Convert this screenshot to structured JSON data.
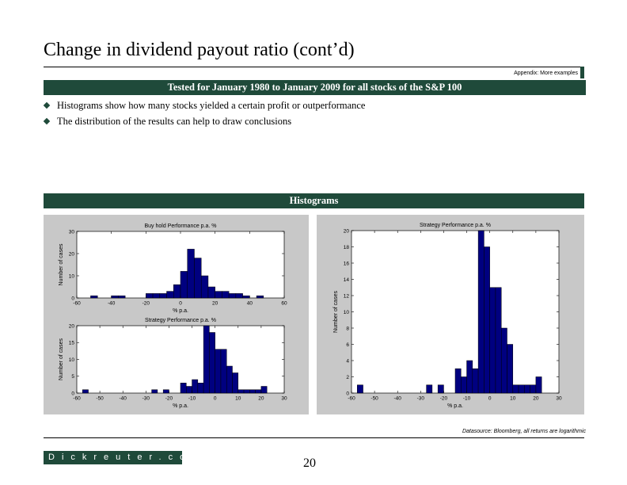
{
  "slide": {
    "title": "Change in dividend payout ratio (cont’d)",
    "appendix": "Appendix: More examples",
    "banner_main": "Tested for January 1980 to January 2009 for all stocks of the S&P  100",
    "bullets": [
      "Histograms show how many stocks yielded a certain profit or outperformance",
      "The distribution of the results can help to draw conclusions"
    ],
    "banner_hist": "Histograms",
    "source": "Datasource: Bloomberg, all returns are logarithmic",
    "brand": "Dickreuter.com",
    "page_number": "20"
  },
  "chart_data": [
    {
      "type": "bar",
      "title": "Buy hold Performance p.a. %",
      "xlabel": "% p.a.",
      "ylabel": "Number of cases",
      "xlim": [
        -60,
        60
      ],
      "ylim": [
        0,
        30
      ],
      "xticks": [
        -60,
        -40,
        -20,
        0,
        20,
        40,
        60
      ],
      "yticks": [
        0,
        10,
        20,
        30
      ],
      "bin_width": 4,
      "bin_starts": [
        -52,
        -40,
        -36,
        -20,
        -16,
        -12,
        -8,
        -4,
        0,
        4,
        8,
        12,
        16,
        20,
        24,
        28,
        32,
        36,
        44
      ],
      "values": [
        1,
        1,
        1,
        2,
        2,
        2,
        3,
        6,
        12,
        22,
        18,
        10,
        5,
        3,
        3,
        2,
        2,
        1,
        1
      ]
    },
    {
      "type": "bar",
      "title": "Strategy Performance p.a. %",
      "xlabel": "% p.a.",
      "ylabel": "Number of cases",
      "xlim": [
        -60,
        30
      ],
      "ylim": [
        0,
        20
      ],
      "xticks": [
        -60,
        -50,
        -40,
        -30,
        -20,
        -10,
        0,
        10,
        20,
        30
      ],
      "yticks": [
        0,
        5,
        10,
        15,
        20
      ],
      "bin_width": 2.5,
      "bin_starts": [
        -57.5,
        -27.5,
        -22.5,
        -15,
        -12.5,
        -10,
        -7.5,
        -5,
        -2.5,
        0,
        2.5,
        5,
        7.5,
        10,
        12.5,
        15,
        17.5,
        20
      ],
      "values": [
        1,
        1,
        1,
        3,
        2,
        4,
        3,
        20,
        18,
        13,
        13,
        8,
        6,
        1,
        1,
        1,
        1,
        2
      ]
    },
    {
      "type": "bar",
      "title": "Strategy Performance p.a. %",
      "xlabel": "% p.a.",
      "ylabel": "Number of cases",
      "xlim": [
        -60,
        30
      ],
      "ylim": [
        0,
        20
      ],
      "xticks": [
        -60,
        -50,
        -40,
        -30,
        -20,
        -10,
        0,
        10,
        20,
        30
      ],
      "yticks": [
        0,
        2,
        4,
        6,
        8,
        10,
        12,
        14,
        16,
        18,
        20
      ],
      "bin_width": 2.5,
      "bin_starts": [
        -57.5,
        -27.5,
        -22.5,
        -15,
        -12.5,
        -10,
        -7.5,
        -5,
        -2.5,
        0,
        2.5,
        5,
        7.5,
        10,
        12.5,
        15,
        17.5,
        20
      ],
      "values": [
        1,
        1,
        1,
        3,
        2,
        4,
        3,
        20,
        18,
        13,
        13,
        8,
        6,
        1,
        1,
        1,
        1,
        2
      ]
    }
  ]
}
